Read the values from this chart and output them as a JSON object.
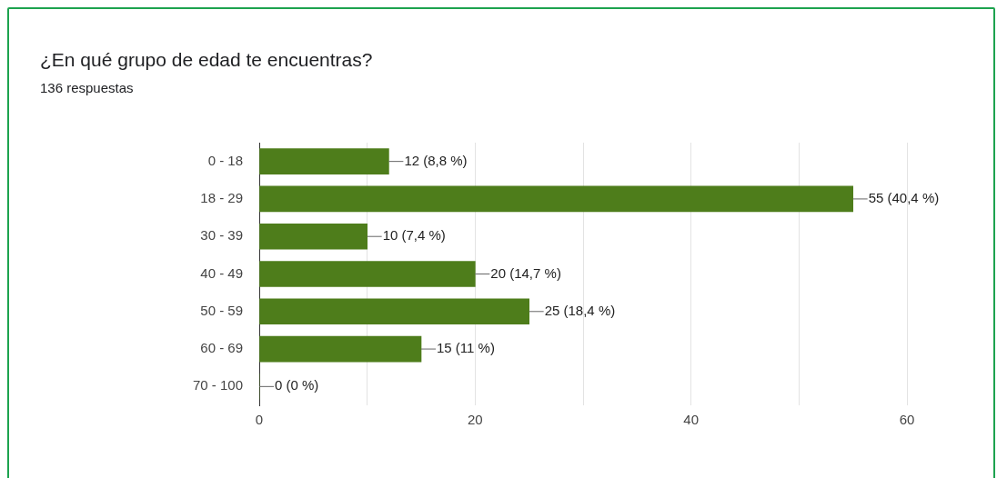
{
  "chart_data": {
    "type": "bar",
    "orientation": "horizontal",
    "title": "¿En qué grupo de edad te encuentras?",
    "subtitle": "136 respuestas",
    "categories": [
      "0 - 18",
      "18 - 29",
      "30 - 39",
      "40 - 49",
      "50 - 59",
      "60 - 69",
      "70 - 100"
    ],
    "values": [
      12,
      55,
      10,
      20,
      25,
      15,
      0
    ],
    "value_labels": [
      "12 (8,8 %)",
      "55 (40,4 %)",
      "10 (7,4 %)",
      "20 (14,7 %)",
      "25 (18,4 %)",
      "15 (11 %)",
      "0 (0 %)"
    ],
    "color": "#4e7d1b",
    "xlim": [
      0,
      60
    ],
    "xticks": [
      0,
      {
        "value": 10,
        "label": null
      },
      20,
      {
        "value": 30,
        "label": null
      },
      40,
      {
        "value": 50,
        "label": null
      },
      60
    ],
    "grid": "x",
    "legend": false
  }
}
